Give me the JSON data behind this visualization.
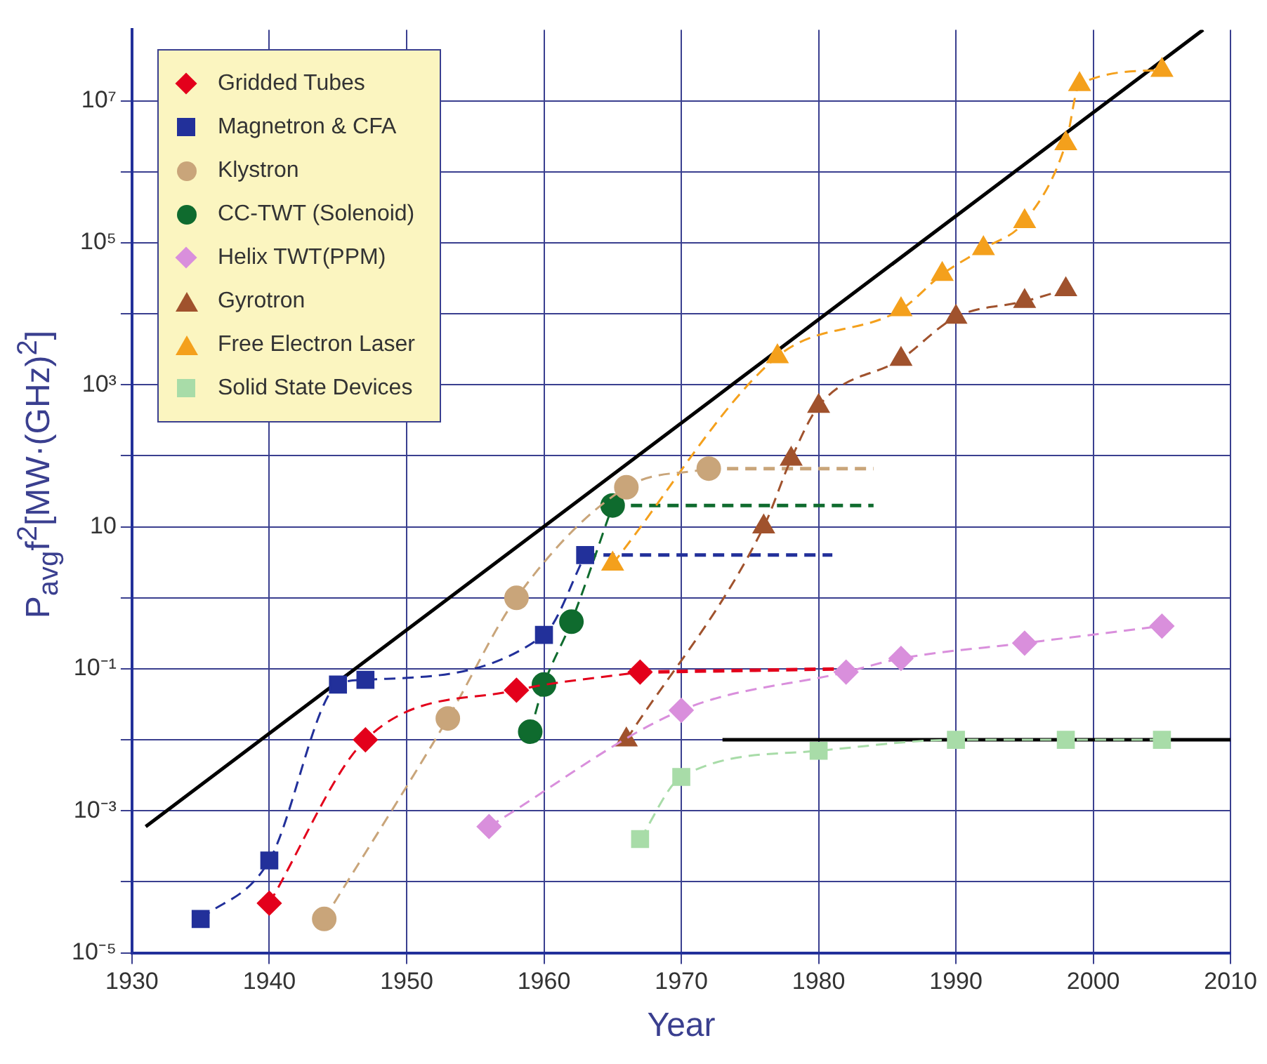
{
  "chart_data": {
    "type": "line",
    "xlabel": "Year",
    "ylabel": "P$_{avg}$f$^{2}$[MW·(GHz)$^{2}$]",
    "log": "y",
    "grid": true,
    "legend": "top left",
    "xlim": [
      1930,
      2010
    ],
    "xticks": [
      1930,
      1940,
      1950,
      1960,
      1970,
      1980,
      1990,
      2000,
      2010
    ],
    "ylim": [
      1e-05,
      100000000.0
    ],
    "yticks": [
      {
        "value": 1e-05,
        "label": "10⁻⁵"
      },
      {
        "value": 0.0001,
        "label": null
      },
      {
        "value": 0.001,
        "label": "10⁻³"
      },
      {
        "value": 0.01,
        "label": null
      },
      {
        "value": 0.1,
        "label": "10⁻¹"
      },
      {
        "value": 1,
        "label": null
      },
      {
        "value": 10,
        "label": "10"
      },
      {
        "value": 100,
        "label": null
      },
      {
        "value": 1000,
        "label": "10³"
      },
      {
        "value": 10000.0,
        "label": null
      },
      {
        "value": 100000.0,
        "label": "10⁵"
      },
      {
        "value": 1000000.0,
        "label": null
      },
      {
        "value": 10000000.0,
        "label": "10⁷"
      }
    ],
    "series": [
      {
        "name": "Gridded Tubes",
        "color": "#e3001b",
        "marker": "diamond",
        "line_style": "dashed",
        "x": [
          1940,
          1947,
          1958,
          1967
        ],
        "values": [
          5e-05,
          0.01,
          0.05,
          0.09
        ]
      },
      {
        "name": "Magnetron & CFA",
        "color": "#22309a",
        "marker": "square",
        "line_style": "dashed",
        "x": [
          1935,
          1940,
          1945,
          1947,
          1960,
          1963
        ],
        "values": [
          3e-05,
          0.0002,
          0.06,
          0.07,
          0.3,
          4
        ]
      },
      {
        "name": "Klystron",
        "color": "#c9a57a",
        "marker": "circle",
        "line_style": "dashed",
        "x": [
          1944,
          1953,
          1958,
          1966,
          1972
        ],
        "values": [
          3e-05,
          0.02,
          1,
          36,
          66
        ]
      },
      {
        "name": "CC-TWT (Solenoid)",
        "color": "#0f6b2e",
        "marker": "circle",
        "line_style": "dashed",
        "x": [
          1959,
          1960,
          1962,
          1965
        ],
        "values": [
          0.013,
          0.06,
          0.46,
          20
        ]
      },
      {
        "name": "Helix TWT(PPM)",
        "color": "#d98fdc",
        "marker": "diamond",
        "line_style": "dashed",
        "x": [
          1956,
          1970,
          1982,
          1986,
          1995,
          2005
        ],
        "values": [
          0.0006,
          0.026,
          0.09,
          0.14,
          0.23,
          0.4
        ]
      },
      {
        "name": "Gyrotron",
        "color": "#a0522d",
        "marker": "triangle",
        "line_style": "dashed",
        "x": [
          1966,
          1976,
          1978,
          1980,
          1986,
          1990,
          1995,
          1998
        ],
        "values": [
          0.01,
          10,
          90,
          500,
          2300,
          9000,
          15000,
          22000
        ]
      },
      {
        "name": "Free Electron Laser",
        "color": "#f4a01c",
        "marker": "triangle",
        "line_style": "dashed",
        "x": [
          1965,
          1977,
          1986,
          1989,
          1992,
          1995,
          1998,
          1999,
          2005
        ],
        "values": [
          3,
          2500,
          11500,
          36000,
          83000,
          200000,
          2500000,
          17000000,
          27000000
        ]
      },
      {
        "name": "Solid State Devices",
        "color": "#a8dca8",
        "marker": "square",
        "line_style": "dashed",
        "x": [
          1967,
          1970,
          1980,
          1990,
          1998,
          2005
        ],
        "values": [
          0.0004,
          0.003,
          0.007,
          0.01,
          0.01,
          0.01
        ]
      },
      {
        "color": "#e3001b",
        "marker": "none",
        "line_style": "dashed",
        "x": [
          1967,
          1982
        ],
        "values": [
          0.09,
          0.1
        ]
      },
      {
        "color": "#22309a",
        "marker": "none",
        "line_style": "dashed",
        "x": [
          1963,
          1981
        ],
        "values": [
          4,
          4
        ]
      },
      {
        "color": "#c9a57a",
        "marker": "none",
        "line_style": "dashed",
        "x": [
          1972,
          1984
        ],
        "values": [
          66,
          66
        ]
      },
      {
        "color": "#0f6b2e",
        "marker": "none",
        "line_style": "dashed",
        "x": [
          1965,
          1984
        ],
        "values": [
          20,
          20
        ]
      },
      {
        "color": "#000000",
        "marker": "none",
        "line_style": "solid",
        "x": [
          1931,
          2008
        ],
        "values": [
          0.0006,
          100000000.0
        ]
      },
      {
        "color": "#000000",
        "marker": "none",
        "line_style": "solid",
        "x": [
          1973,
          2010
        ],
        "values": [
          0.01,
          0.01
        ]
      }
    ]
  }
}
